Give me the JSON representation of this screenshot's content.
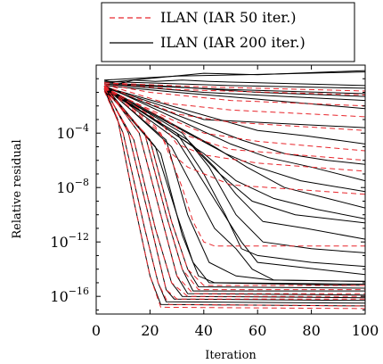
{
  "chart_data": {
    "type": "line",
    "xlabel": "Iteration",
    "ylabel": "Relative residual",
    "xlim": [
      0,
      100
    ],
    "ylim_log10": [
      -17.3,
      1.0
    ],
    "yscale": "log",
    "grid": false,
    "legend_position": "top-center, above plot",
    "x_ticks": [
      {
        "value": 0,
        "label": "0"
      },
      {
        "value": 20,
        "label": "20"
      },
      {
        "value": 40,
        "label": "40"
      },
      {
        "value": 60,
        "label": "60"
      },
      {
        "value": 80,
        "label": "80"
      },
      {
        "value": 100,
        "label": "100"
      }
    ],
    "y_ticks": [
      {
        "exp": -4,
        "base": "10",
        "power": "−4"
      },
      {
        "exp": -8,
        "base": "10",
        "power": "−8"
      },
      {
        "exp": -12,
        "base": "10",
        "power": "−12"
      },
      {
        "exp": -16,
        "base": "10",
        "power": "−16"
      }
    ],
    "legend": [
      {
        "label": "ILAN (IAR 50 iter.)",
        "color": "#e8262c",
        "dash": "dashed"
      },
      {
        "label": "ILAN (IAR 200 iter.)",
        "color": "#000000",
        "dash": "solid"
      }
    ],
    "series_note": "Each curve is given as [iteration, log10(relative residual)] knots.",
    "black_series": [
      [
        [
          3,
          -0.7
        ],
        [
          8,
          -3.0
        ],
        [
          14,
          -9.0
        ],
        [
          20,
          -14.5
        ],
        [
          24,
          -16.6
        ],
        [
          100,
          -16.7
        ]
      ],
      [
        [
          3,
          -0.8
        ],
        [
          10,
          -4.0
        ],
        [
          18,
          -11.0
        ],
        [
          23,
          -15.0
        ],
        [
          26,
          -16.4
        ],
        [
          100,
          -16.5
        ]
      ],
      [
        [
          3,
          -0.6
        ],
        [
          12,
          -4.0
        ],
        [
          20,
          -10.5
        ],
        [
          26,
          -15.5
        ],
        [
          29,
          -16.2
        ],
        [
          100,
          -16.3
        ]
      ],
      [
        [
          3,
          -0.7
        ],
        [
          14,
          -4.5
        ],
        [
          22,
          -11.0
        ],
        [
          28,
          -15.0
        ],
        [
          32,
          -16.0
        ],
        [
          100,
          -16.1
        ]
      ],
      [
        [
          3,
          -0.5
        ],
        [
          16,
          -4.0
        ],
        [
          24,
          -10.0
        ],
        [
          30,
          -14.5
        ],
        [
          34,
          -15.8
        ],
        [
          100,
          -15.9
        ]
      ],
      [
        [
          3,
          -0.8
        ],
        [
          18,
          -4.0
        ],
        [
          26,
          -10.0
        ],
        [
          32,
          -14.0
        ],
        [
          36,
          -15.6
        ],
        [
          100,
          -15.6
        ]
      ],
      [
        [
          3,
          -0.6
        ],
        [
          20,
          -4.5
        ],
        [
          28,
          -10.5
        ],
        [
          34,
          -14.0
        ],
        [
          38,
          -15.3
        ],
        [
          100,
          -15.4
        ]
      ],
      [
        [
          3,
          -0.5
        ],
        [
          22,
          -5.0
        ],
        [
          30,
          -10.0
        ],
        [
          36,
          -13.5
        ],
        [
          42,
          -15.0
        ],
        [
          100,
          -15.2
        ]
      ],
      [
        [
          3,
          -0.7
        ],
        [
          24,
          -5.5
        ],
        [
          32,
          -11.5
        ],
        [
          38,
          -14.5
        ],
        [
          44,
          -15.0
        ],
        [
          100,
          -15.1
        ]
      ],
      [
        [
          3,
          -0.6
        ],
        [
          26,
          -4.5
        ],
        [
          34,
          -10.0
        ],
        [
          42,
          -13.5
        ],
        [
          52,
          -14.5
        ],
        [
          65,
          -14.8
        ],
        [
          100,
          -14.9
        ]
      ],
      [
        [
          3,
          -0.5
        ],
        [
          28,
          -5.0
        ],
        [
          36,
          -8.0
        ],
        [
          44,
          -11.0
        ],
        [
          52,
          -12.5
        ],
        [
          58,
          -14.0
        ],
        [
          66,
          -14.8
        ],
        [
          100,
          -14.9
        ]
      ],
      [
        [
          3,
          -0.6
        ],
        [
          30,
          -4.5
        ],
        [
          38,
          -7.0
        ],
        [
          46,
          -9.5
        ],
        [
          54,
          -12.0
        ],
        [
          60,
          -13.5
        ],
        [
          100,
          -14.4
        ]
      ],
      [
        [
          3,
          -0.8
        ],
        [
          30,
          -4.0
        ],
        [
          40,
          -7.0
        ],
        [
          48,
          -10.0
        ],
        [
          54,
          -12.5
        ],
        [
          60,
          -13.0
        ],
        [
          80,
          -13.5
        ],
        [
          100,
          -13.8
        ]
      ],
      [
        [
          3,
          -0.6
        ],
        [
          32,
          -4.0
        ],
        [
          42,
          -6.5
        ],
        [
          52,
          -10.0
        ],
        [
          62,
          -12.0
        ],
        [
          80,
          -12.5
        ],
        [
          100,
          -12.8
        ]
      ],
      [
        [
          3,
          -0.7
        ],
        [
          34,
          -4.5
        ],
        [
          44,
          -6.5
        ],
        [
          52,
          -8.5
        ],
        [
          62,
          -10.5
        ],
        [
          78,
          -11.0
        ],
        [
          100,
          -11.8
        ]
      ],
      [
        [
          3,
          -0.5
        ],
        [
          36,
          -5.0
        ],
        [
          46,
          -7.0
        ],
        [
          58,
          -9.0
        ],
        [
          74,
          -10.0
        ],
        [
          100,
          -10.6
        ]
      ],
      [
        [
          3,
          -0.6
        ],
        [
          40,
          -5.5
        ],
        [
          52,
          -7.5
        ],
        [
          66,
          -8.8
        ],
        [
          82,
          -9.6
        ],
        [
          100,
          -10.3
        ]
      ],
      [
        [
          3,
          -0.6
        ],
        [
          44,
          -5.0
        ],
        [
          56,
          -6.5
        ],
        [
          70,
          -8.0
        ],
        [
          86,
          -8.8
        ],
        [
          100,
          -9.5
        ]
      ],
      [
        [
          3,
          -0.7
        ],
        [
          48,
          -5.5
        ],
        [
          60,
          -6.5
        ],
        [
          76,
          -7.5
        ],
        [
          100,
          -8.3
        ]
      ],
      [
        [
          3,
          -0.5
        ],
        [
          50,
          -4.8
        ],
        [
          64,
          -5.8
        ],
        [
          80,
          -6.5
        ],
        [
          100,
          -7.5
        ]
      ],
      [
        [
          3,
          -0.6
        ],
        [
          54,
          -4.5
        ],
        [
          70,
          -5.5
        ],
        [
          86,
          -6.0
        ],
        [
          100,
          -6.3
        ]
      ],
      [
        [
          3,
          -0.6
        ],
        [
          60,
          -3.8
        ],
        [
          78,
          -4.2
        ],
        [
          100,
          -4.8
        ]
      ],
      [
        [
          3,
          -0.6
        ],
        [
          40,
          -3.0
        ],
        [
          70,
          -3.3
        ],
        [
          100,
          -3.6
        ]
      ],
      [
        [
          3,
          -0.5
        ],
        [
          30,
          -1.0
        ],
        [
          60,
          -1.5
        ],
        [
          100,
          -2.2
        ]
      ],
      [
        [
          3,
          -0.4
        ],
        [
          40,
          -1.0
        ],
        [
          70,
          -1.3
        ],
        [
          100,
          -1.6
        ]
      ],
      [
        [
          3,
          -0.3
        ],
        [
          30,
          -0.6
        ],
        [
          60,
          -1.0
        ],
        [
          100,
          -1.3
        ]
      ],
      [
        [
          3,
          -0.4
        ],
        [
          50,
          -0.8
        ],
        [
          100,
          -1.1
        ]
      ],
      [
        [
          3,
          -0.2
        ],
        [
          50,
          -0.5
        ],
        [
          100,
          -0.7
        ]
      ],
      [
        [
          3,
          -0.1
        ],
        [
          8,
          -0.4
        ],
        [
          14,
          -0.1
        ],
        [
          22,
          -0.2
        ],
        [
          32,
          -0.1
        ],
        [
          42,
          -0.2
        ],
        [
          60,
          -0.3
        ],
        [
          100,
          -0.5
        ]
      ],
      [
        [
          3,
          -0.3
        ],
        [
          40,
          0.4
        ],
        [
          60,
          0.3
        ],
        [
          100,
          0.6
        ]
      ],
      [
        [
          3,
          -0.1
        ],
        [
          30,
          0.2
        ],
        [
          55,
          0.3
        ],
        [
          100,
          0.5
        ]
      ]
    ],
    "red_series": [
      [
        [
          3,
          -0.6
        ],
        [
          8,
          -3.0
        ],
        [
          14,
          -9.0
        ],
        [
          20,
          -14.5
        ],
        [
          24,
          -16.8
        ],
        [
          100,
          -16.9
        ]
      ],
      [
        [
          3,
          -0.9
        ],
        [
          10,
          -4.0
        ],
        [
          18,
          -11.0
        ],
        [
          23,
          -15.0
        ],
        [
          27,
          -16.6
        ],
        [
          100,
          -16.7
        ]
      ],
      [
        [
          3,
          -0.6
        ],
        [
          12,
          -4.0
        ],
        [
          20,
          -10.5
        ],
        [
          26,
          -15.5
        ],
        [
          30,
          -16.2
        ],
        [
          100,
          -16.2
        ]
      ],
      [
        [
          3,
          -0.7
        ],
        [
          14,
          -4.5
        ],
        [
          22,
          -11.0
        ],
        [
          28,
          -15.0
        ],
        [
          34,
          -16.0
        ],
        [
          100,
          -16.0
        ]
      ],
      [
        [
          3,
          -0.5
        ],
        [
          16,
          -4.0
        ],
        [
          24,
          -10.0
        ],
        [
          30,
          -14.5
        ],
        [
          36,
          -15.8
        ],
        [
          100,
          -15.8
        ]
      ],
      [
        [
          3,
          -0.8
        ],
        [
          18,
          -4.0
        ],
        [
          26,
          -10.0
        ],
        [
          32,
          -14.0
        ],
        [
          38,
          -15.5
        ],
        [
          100,
          -15.5
        ]
      ],
      [
        [
          3,
          -0.6
        ],
        [
          20,
          -4.5
        ],
        [
          28,
          -10.5
        ],
        [
          34,
          -14.0
        ],
        [
          40,
          -15.2
        ],
        [
          100,
          -15.2
        ]
      ],
      [
        [
          3,
          -0.6
        ],
        [
          24,
          -4.0
        ],
        [
          32,
          -8.0
        ],
        [
          36,
          -10.5
        ],
        [
          40,
          -12.0
        ],
        [
          44,
          -12.3
        ],
        [
          100,
          -12.3
        ]
      ],
      [
        [
          3,
          -0.5
        ],
        [
          22,
          -3.5
        ],
        [
          28,
          -5.5
        ],
        [
          34,
          -6.5
        ],
        [
          50,
          -7.8
        ],
        [
          100,
          -8.5
        ]
      ],
      [
        [
          3,
          -0.6
        ],
        [
          24,
          -3.2
        ],
        [
          30,
          -4.8
        ],
        [
          40,
          -5.6
        ],
        [
          60,
          -6.2
        ],
        [
          100,
          -6.8
        ]
      ],
      [
        [
          3,
          -0.6
        ],
        [
          26,
          -3.0
        ],
        [
          34,
          -4.2
        ],
        [
          50,
          -5.2
        ],
        [
          100,
          -6.0
        ]
      ],
      [
        [
          3,
          -0.7
        ],
        [
          28,
          -3.0
        ],
        [
          40,
          -4.0
        ],
        [
          60,
          -4.6
        ],
        [
          100,
          -5.3
        ]
      ],
      [
        [
          3,
          -0.5
        ],
        [
          30,
          -2.6
        ],
        [
          50,
          -3.2
        ],
        [
          100,
          -3.8
        ]
      ],
      [
        [
          3,
          -0.4
        ],
        [
          26,
          -1.8
        ],
        [
          50,
          -2.3
        ],
        [
          100,
          -2.8
        ]
      ],
      [
        [
          3,
          -0.4
        ],
        [
          20,
          -1.0
        ],
        [
          50,
          -1.6
        ],
        [
          100,
          -2.0
        ]
      ],
      [
        [
          3,
          -0.3
        ],
        [
          30,
          -0.8
        ],
        [
          100,
          -1.2
        ]
      ],
      [
        [
          3,
          -0.3
        ],
        [
          40,
          -0.6
        ],
        [
          100,
          -0.9
        ]
      ]
    ]
  }
}
